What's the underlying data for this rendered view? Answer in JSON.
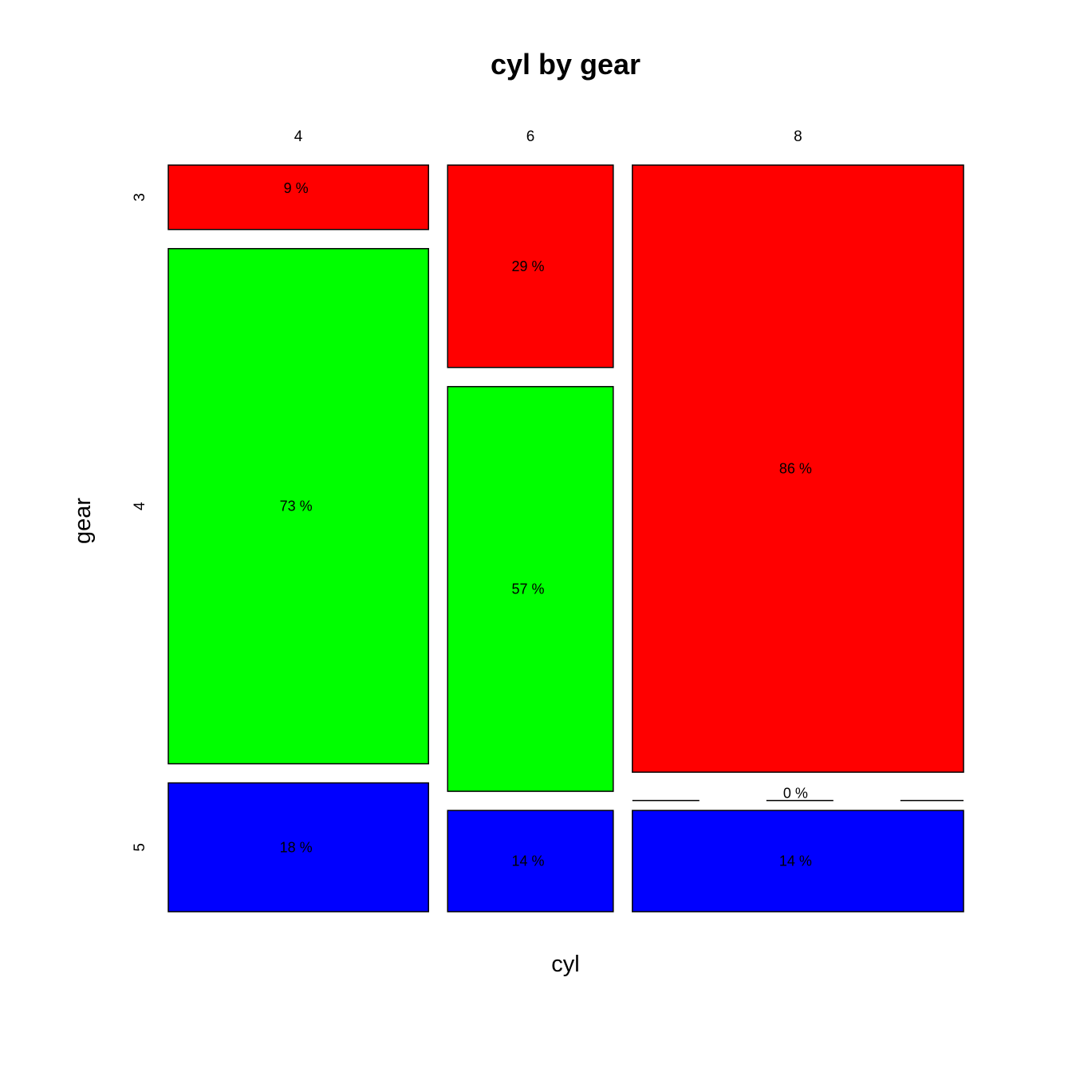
{
  "chart_data": {
    "type": "mosaic",
    "title": "cyl by gear",
    "xlabel": "cyl",
    "ylabel": "gear",
    "x_categories": [
      "4",
      "6",
      "8"
    ],
    "y_categories": [
      "3",
      "4",
      "5"
    ],
    "x_proportions": [
      0.34375,
      0.21875,
      0.4375
    ],
    "cells": [
      {
        "x": "4",
        "y": "3",
        "value": 9.09,
        "label": "9 %",
        "color": "#FF0000"
      },
      {
        "x": "4",
        "y": "4",
        "value": 72.73,
        "label": "73 %",
        "color": "#00FF00"
      },
      {
        "x": "4",
        "y": "5",
        "value": 18.18,
        "label": "18 %",
        "color": "#0000FF"
      },
      {
        "x": "6",
        "y": "3",
        "value": 28.57,
        "label": "29 %",
        "color": "#FF0000"
      },
      {
        "x": "6",
        "y": "4",
        "value": 57.14,
        "label": "57 %",
        "color": "#00FF00"
      },
      {
        "x": "6",
        "y": "5",
        "value": 14.29,
        "label": "14 %",
        "color": "#0000FF"
      },
      {
        "x": "8",
        "y": "3",
        "value": 85.71,
        "label": "86 %",
        "color": "#FF0000"
      },
      {
        "x": "8",
        "y": "4",
        "value": 0,
        "label": "0 %",
        "color": "#00FF00"
      },
      {
        "x": "8",
        "y": "5",
        "value": 14.29,
        "label": "14 %",
        "color": "#0000FF"
      }
    ]
  }
}
